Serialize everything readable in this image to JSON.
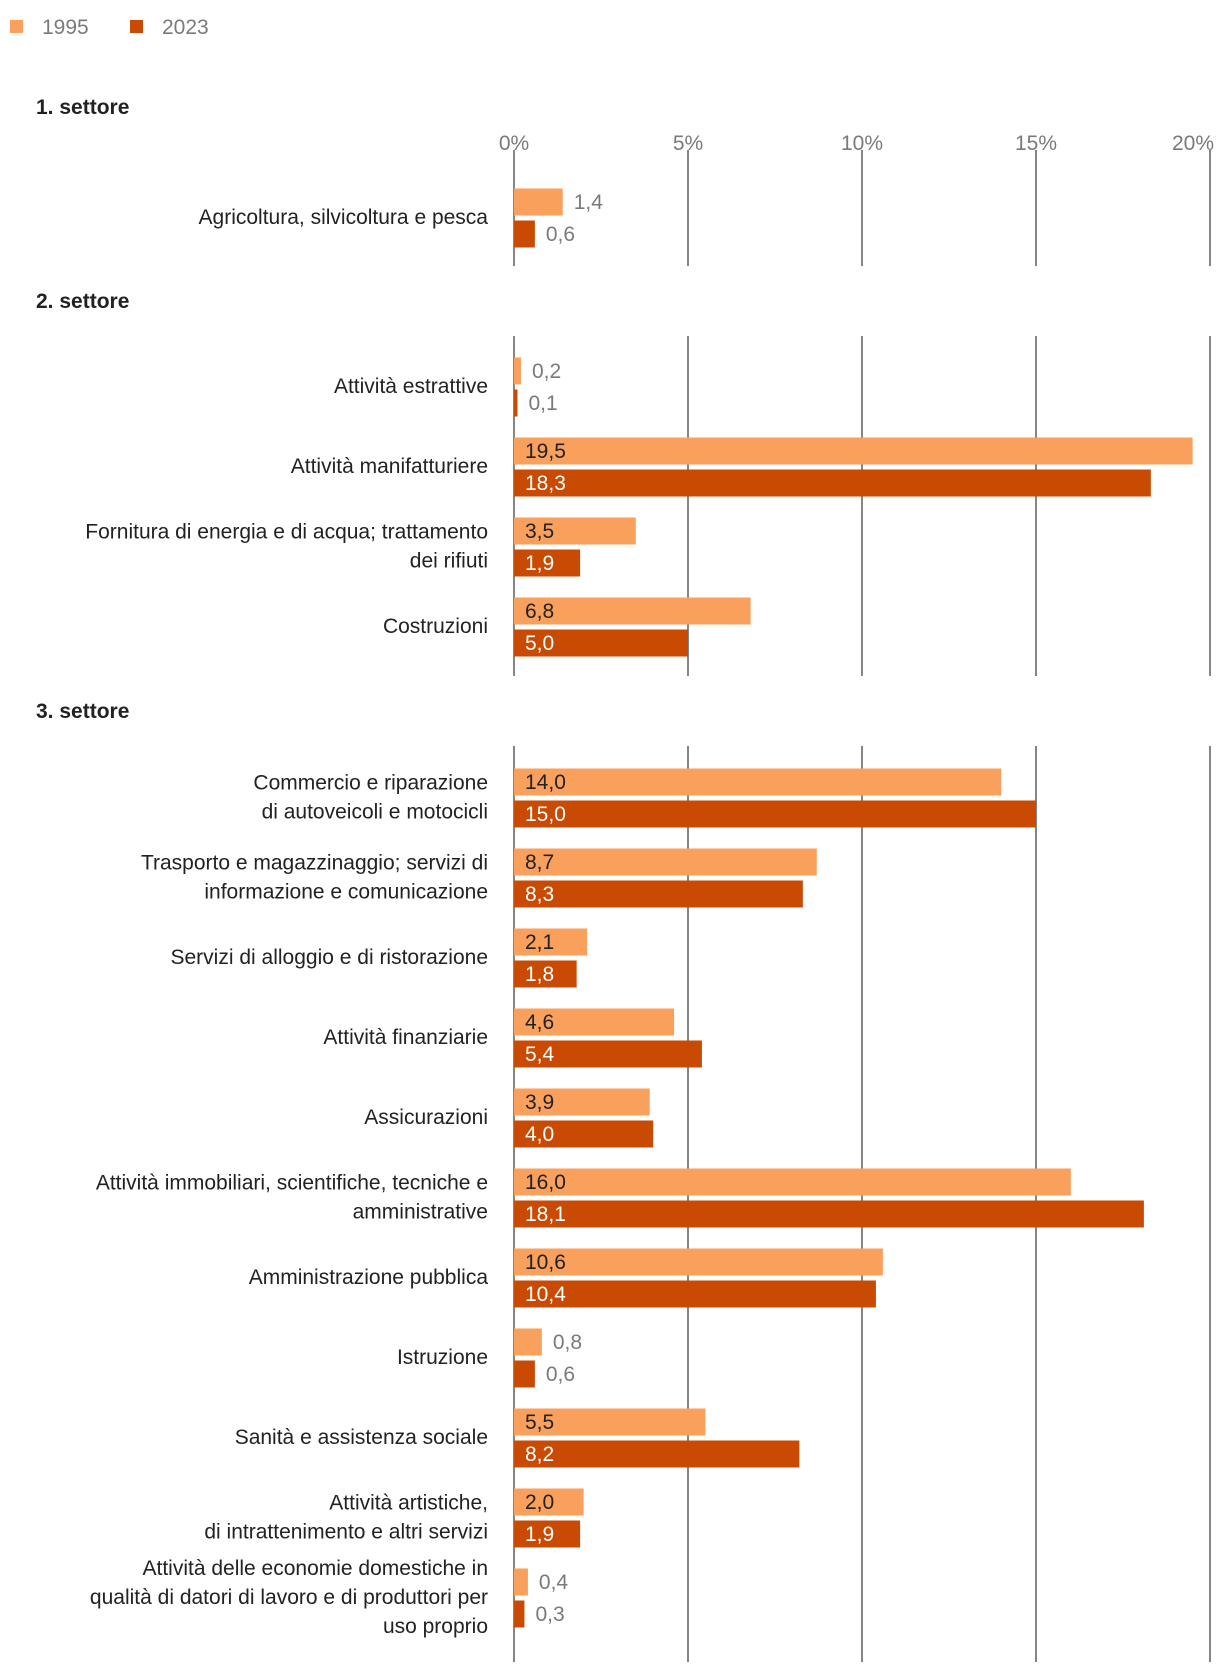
{
  "chart_data": {
    "type": "bar",
    "orientation": "horizontal",
    "legend": [
      {
        "name": "1995",
        "color": "#F9A05C"
      },
      {
        "name": "2023",
        "color": "#C94A02"
      }
    ],
    "axis": {
      "min": 0,
      "max": 20,
      "ticks": [
        0,
        5,
        10,
        15,
        20
      ],
      "tick_labels": [
        "0%",
        "5%",
        "10%",
        "15%",
        "20%"
      ]
    },
    "groups": [
      {
        "title": "1. settore",
        "categories": [
          {
            "label": [
              "Agricoltura, silvicoltura e pesca"
            ],
            "values": [
              1.4,
              0.6
            ],
            "labels": [
              "1,4",
              "0,6"
            ]
          }
        ]
      },
      {
        "title": "2. settore",
        "categories": [
          {
            "label": [
              "Attività estrattive"
            ],
            "values": [
              0.2,
              0.1
            ],
            "labels": [
              "0,2",
              "0,1"
            ]
          },
          {
            "label": [
              "Attività manifatturiere"
            ],
            "values": [
              19.5,
              18.3
            ],
            "labels": [
              "19,5",
              "18,3"
            ]
          },
          {
            "label": [
              "Fornitura di energia e di acqua; trattamento",
              "dei rifiuti"
            ],
            "values": [
              3.5,
              1.9
            ],
            "labels": [
              "3,5",
              "1,9"
            ]
          },
          {
            "label": [
              "Costruzioni"
            ],
            "values": [
              6.8,
              5.0
            ],
            "labels": [
              "6,8",
              "5,0"
            ]
          }
        ]
      },
      {
        "title": "3. settore",
        "categories": [
          {
            "label": [
              "Commercio e riparazione",
              "di autoveicoli e motocicli"
            ],
            "values": [
              14.0,
              15.0
            ],
            "labels": [
              "14,0",
              "15,0"
            ]
          },
          {
            "label": [
              "Trasporto e magazzinaggio; servizi di",
              "informazione e comunicazione"
            ],
            "values": [
              8.7,
              8.3
            ],
            "labels": [
              "8,7",
              "8,3"
            ]
          },
          {
            "label": [
              "Servizi di alloggio e di ristorazione"
            ],
            "values": [
              2.1,
              1.8
            ],
            "labels": [
              "2,1",
              "1,8"
            ]
          },
          {
            "label": [
              "Attività finanziarie"
            ],
            "values": [
              4.6,
              5.4
            ],
            "labels": [
              "4,6",
              "5,4"
            ]
          },
          {
            "label": [
              "Assicurazioni"
            ],
            "values": [
              3.9,
              4.0
            ],
            "labels": [
              "3,9",
              "4,0"
            ]
          },
          {
            "label": [
              "Attività immobiliari, scientifiche, tecniche e",
              "amministrative"
            ],
            "values": [
              16.0,
              18.1
            ],
            "labels": [
              "16,0",
              "18,1"
            ]
          },
          {
            "label": [
              "Amministrazione pubblica"
            ],
            "values": [
              10.6,
              10.4
            ],
            "labels": [
              "10,6",
              "10,4"
            ]
          },
          {
            "label": [
              "Istruzione"
            ],
            "values": [
              0.8,
              0.6
            ],
            "labels": [
              "0,8",
              "0,6"
            ]
          },
          {
            "label": [
              "Sanità e assistenza sociale"
            ],
            "values": [
              5.5,
              8.2
            ],
            "labels": [
              "5,5",
              "8,2"
            ]
          },
          {
            "label": [
              "Attività artistiche,",
              "di intrattenimento e altri servizi"
            ],
            "values": [
              2.0,
              1.9
            ],
            "labels": [
              "2,0",
              "1,9"
            ]
          },
          {
            "label": [
              "Attività delle economie domestiche in",
              "qualità di datori di lavoro e di produttori per",
              "uso proprio"
            ],
            "values": [
              0.4,
              0.3
            ],
            "labels": [
              "0,4",
              "0,3"
            ]
          }
        ]
      }
    ]
  }
}
